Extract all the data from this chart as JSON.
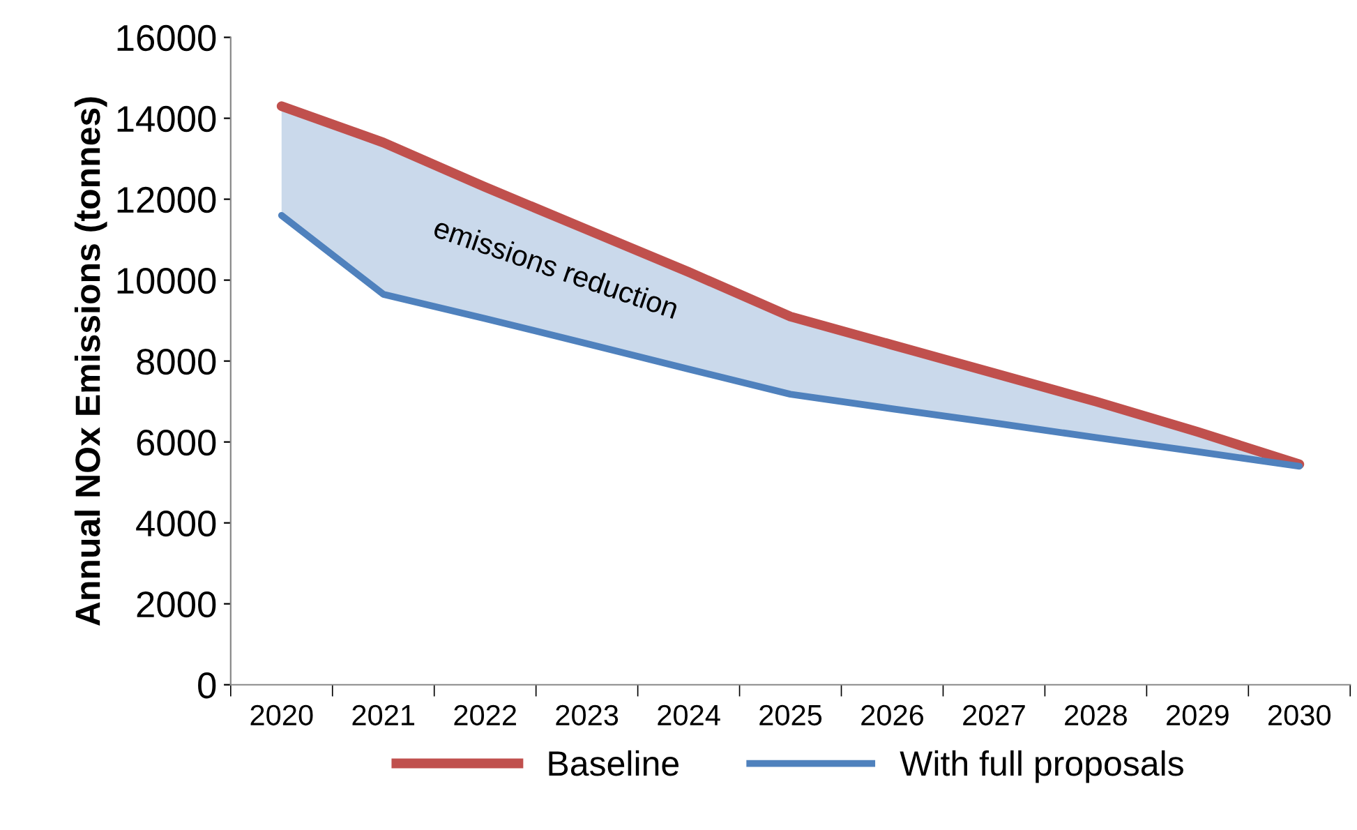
{
  "chart_data": {
    "type": "line",
    "ylabel": "Annual NOx Emissions (tonnes)",
    "categories": [
      "2020",
      "2021",
      "2022",
      "2023",
      "2024",
      "2025",
      "2026",
      "2027",
      "2028",
      "2029",
      "2030"
    ],
    "series": [
      {
        "name": "Baseline",
        "color": "#c0504d",
        "values": [
          14300,
          13400,
          12300,
          11250,
          10200,
          9100,
          8400,
          7700,
          7000,
          6250,
          5450
        ]
      },
      {
        "name": "With full proposals",
        "color": "#4f81bd",
        "values": [
          11600,
          9650,
          9050,
          8430,
          7800,
          7180,
          6820,
          6470,
          6110,
          5760,
          5400
        ],
        "lower": [
          11600,
          9650,
          9050,
          8430,
          7800,
          7180,
          6820,
          6470,
          6110,
          5760,
          5400
        ],
        "upper": [
          14300,
          13400,
          12300,
          11250,
          10200,
          9100,
          8400,
          7700,
          7000,
          6250,
          5450
        ]
      }
    ],
    "annotations": [
      "emissions reduction"
    ],
    "ylim": [
      0,
      16000
    ],
    "yticks": [
      0,
      2000,
      4000,
      6000,
      8000,
      10000,
      12000,
      14000,
      16000
    ],
    "grid": false,
    "legend": "bottom",
    "marker": "none",
    "line_style": "solid"
  }
}
